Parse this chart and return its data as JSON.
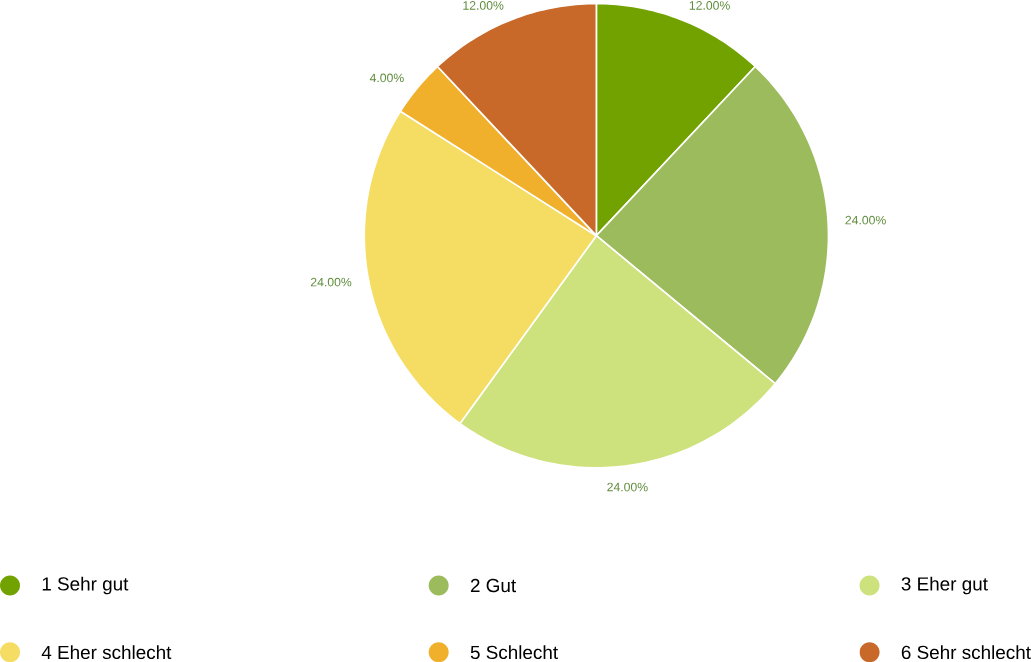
{
  "chart_data": {
    "type": "pie",
    "categories": [
      "1 Sehr gut",
      "2 Gut",
      "3 Eher gut",
      "4 Eher schlecht",
      "5 Schlecht",
      "6 Sehr schlecht"
    ],
    "values": [
      12,
      24,
      24,
      24,
      4,
      12
    ],
    "value_labels": [
      "12.00%",
      "24.00%",
      "24.00%",
      "24.00%",
      "4.00%",
      "12.00%"
    ],
    "colors": [
      "#72a200",
      "#9cbb5c",
      "#cde17c",
      "#f5dc62",
      "#f0b02c",
      "#c8692a"
    ],
    "legend": "bottom"
  }
}
